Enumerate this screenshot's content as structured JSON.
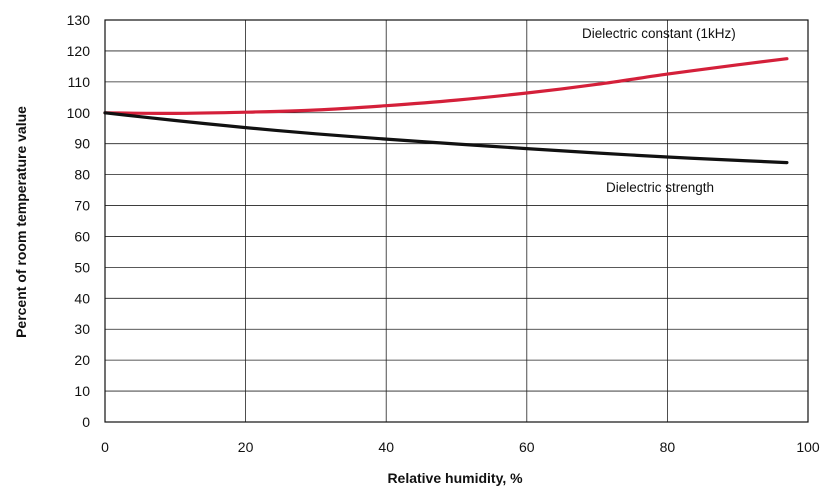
{
  "chart_data": {
    "type": "line",
    "title": "",
    "xlabel": "Relative humidity, %",
    "ylabel": "Percent of room temperature value",
    "xlim": [
      0,
      100
    ],
    "ylim": [
      0,
      130
    ],
    "x_ticks": [
      0,
      20,
      40,
      60,
      80,
      100
    ],
    "y_ticks": [
      0,
      10,
      20,
      30,
      40,
      50,
      60,
      70,
      80,
      90,
      100,
      110,
      120,
      130
    ],
    "grid": true,
    "series": [
      {
        "name": "Dielectric constant (1kHz)",
        "color": "#d4203a",
        "x": [
          0,
          10,
          20,
          30,
          40,
          50,
          60,
          70,
          80,
          90,
          97
        ],
        "y": [
          100,
          99.8,
          100.2,
          100.9,
          102.3,
          104.1,
          106.4,
          109.2,
          112.5,
          115.5,
          117.5
        ]
      },
      {
        "name": "Dielectric strength",
        "color": "#111111",
        "x": [
          0,
          10,
          20,
          30,
          40,
          50,
          60,
          70,
          80,
          90,
          97
        ],
        "y": [
          100,
          97.5,
          95.2,
          93.2,
          91.5,
          89.9,
          88.4,
          87.0,
          85.7,
          84.6,
          83.9
        ]
      }
    ]
  }
}
